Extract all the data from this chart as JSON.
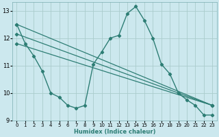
{
  "background_color": "#cce8ee",
  "grid_color": "#aacccc",
  "line_color": "#2d7d74",
  "xlabel": "Humidex (Indice chaleur)",
  "xlim": [
    -0.5,
    23.5
  ],
  "ylim": [
    9,
    13.3
  ],
  "yticks": [
    9,
    10,
    11,
    12,
    13
  ],
  "xticks": [
    0,
    1,
    2,
    3,
    4,
    5,
    6,
    7,
    8,
    9,
    10,
    11,
    12,
    13,
    14,
    15,
    16,
    17,
    18,
    19,
    20,
    21,
    22,
    23
  ],
  "main_series": {
    "x": [
      0,
      1,
      2,
      3,
      4,
      5,
      6,
      7,
      8,
      9,
      10,
      11,
      12,
      13,
      14,
      15,
      16,
      17,
      18,
      19,
      20,
      21,
      22,
      23
    ],
    "y": [
      12.5,
      11.8,
      11.35,
      10.8,
      10.0,
      9.85,
      9.55,
      9.45,
      9.55,
      11.05,
      11.5,
      12.0,
      12.1,
      12.9,
      13.15,
      12.65,
      12.0,
      11.05,
      10.7,
      10.0,
      9.75,
      9.55,
      9.2,
      9.2
    ]
  },
  "trend_lines": [
    {
      "x": [
        0,
        23
      ],
      "y": [
        12.5,
        9.55
      ]
    },
    {
      "x": [
        0,
        23
      ],
      "y": [
        12.15,
        9.55
      ]
    },
    {
      "x": [
        0,
        23
      ],
      "y": [
        11.8,
        9.55
      ]
    }
  ]
}
